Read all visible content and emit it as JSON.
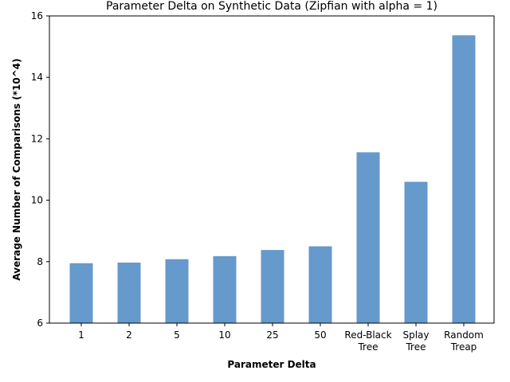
{
  "chart_data": {
    "type": "bar",
    "title": "Parameter Delta on Synthetic Data (Zipfian with alpha = 1)",
    "xlabel": "Parameter Delta",
    "ylabel": "Average Number of Comparisons (*10^4)",
    "ylim": [
      6,
      16
    ],
    "yticks": [
      "6",
      "8",
      "10",
      "12",
      "14",
      "16"
    ],
    "categories": [
      [
        "1"
      ],
      [
        "2"
      ],
      [
        "5"
      ],
      [
        "10"
      ],
      [
        "25"
      ],
      [
        "50"
      ],
      [
        "Red-Black",
        "Tree"
      ],
      [
        "Splay",
        "Tree"
      ],
      [
        "Random",
        "Treap"
      ]
    ],
    "values": [
      7.95,
      7.97,
      8.08,
      8.18,
      8.38,
      8.5,
      11.56,
      10.6,
      15.37
    ],
    "bar_color": "#6699cc",
    "grid": false,
    "legend": "none"
  }
}
